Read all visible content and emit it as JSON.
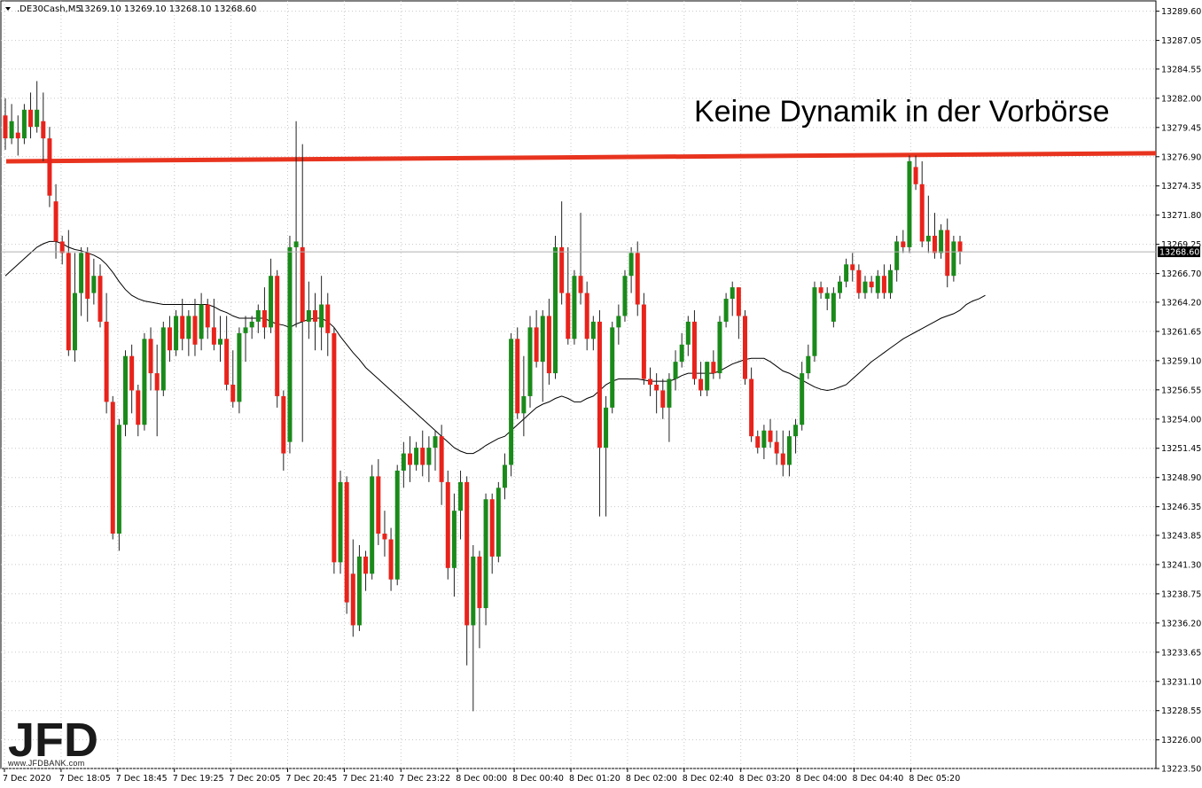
{
  "header": {
    "symbol": ".DE30Cash,M5",
    "ohlc": "13269.10 13269.10 13268.10 13268.60"
  },
  "annotation": "Keine Dynamik in der Vorbörse",
  "logo": {
    "text": "JFD",
    "sub": "www.JFDBANK.com"
  },
  "colors": {
    "bull": "#1a8a1a",
    "bear": "#e8231b",
    "wick": "#222222",
    "ma": "#000000",
    "resistance": "#e8341f",
    "grid": "#c8c8c8",
    "axis": "#000000"
  },
  "chart_data": {
    "type": "candlestick",
    "timeframe": "M5",
    "ylim": [
      13223.5,
      13290.5
    ],
    "y_ticks": [
      "13289.60",
      "13287.05",
      "13284.55",
      "13282.00",
      "13279.45",
      "13276.90",
      "13274.35",
      "13271.80",
      "13269.25",
      "13266.70",
      "13264.20",
      "13261.65",
      "13259.10",
      "13256.55",
      "13254.00",
      "13251.45",
      "13248.90",
      "13246.35",
      "13243.85",
      "13241.30",
      "13238.75",
      "13236.20",
      "13233.65",
      "13231.10",
      "13228.55",
      "13226.00",
      "13223.50"
    ],
    "x_ticks": [
      "7 Dec 2020",
      "7 Dec 18:05",
      "7 Dec 18:45",
      "7 Dec 19:25",
      "7 Dec 20:05",
      "7 Dec 20:45",
      "7 Dec 21:40",
      "7 Dec 23:22",
      "8 Dec 00:00",
      "8 Dec 00:40",
      "8 Dec 01:20",
      "8 Dec 02:00",
      "8 Dec 02:40",
      "8 Dec 03:20",
      "8 Dec 04:00",
      "8 Dec 04:40",
      "8 Dec 05:20"
    ],
    "current_price": "13268.60",
    "resistance_line": {
      "start": 13276.5,
      "end": 13277.2
    },
    "candles": [
      [
        13280.5,
        13282.0,
        13277.5,
        13278.5
      ],
      [
        13278.5,
        13281.5,
        13278.0,
        13280.0
      ],
      [
        13279.0,
        13280.5,
        13277.0,
        13278.5
      ],
      [
        13278.5,
        13281.5,
        13278.0,
        13281.0
      ],
      [
        13281.0,
        13282.5,
        13278.5,
        13279.5
      ],
      [
        13279.5,
        13283.5,
        13279.0,
        13281.0
      ],
      [
        13280.0,
        13282.5,
        13276.5,
        13278.5
      ],
      [
        13278.5,
        13279.5,
        13272.5,
        13273.5
      ],
      [
        13273.0,
        13274.5,
        13268.0,
        13269.5
      ],
      [
        13269.5,
        13270.0,
        13267.5,
        13268.5
      ],
      [
        13268.5,
        13270.5,
        13259.5,
        13260.0
      ],
      [
        13260.0,
        13268.5,
        13259.0,
        13265.0
      ],
      [
        13265.0,
        13269.0,
        13263.0,
        13268.5
      ],
      [
        13268.5,
        13269.0,
        13262.5,
        13264.5
      ],
      [
        13265.0,
        13268.0,
        13264.0,
        13266.5
      ],
      [
        13266.5,
        13267.5,
        13262.0,
        13262.5
      ],
      [
        13262.5,
        13265.0,
        13254.5,
        13255.5
      ],
      [
        13255.5,
        13256.0,
        13243.5,
        13244.0
      ],
      [
        13244.0,
        13254.0,
        13242.5,
        13253.5
      ],
      [
        13253.5,
        13260.0,
        13252.5,
        13259.5
      ],
      [
        13259.5,
        13260.5,
        13254.5,
        13256.5
      ],
      [
        13256.5,
        13257.0,
        13252.5,
        13253.5
      ],
      [
        13253.5,
        13261.5,
        13253.0,
        13261.0
      ],
      [
        13261.0,
        13262.0,
        13256.5,
        13258.0
      ],
      [
        13258.0,
        13260.5,
        13252.5,
        13256.5
      ],
      [
        13256.5,
        13262.5,
        13256.0,
        13262.0
      ],
      [
        13262.0,
        13263.0,
        13259.0,
        13260.0
      ],
      [
        13260.0,
        13263.5,
        13259.5,
        13263.0
      ],
      [
        13263.0,
        13264.5,
        13260.0,
        13261.0
      ],
      [
        13261.0,
        13263.5,
        13259.5,
        13263.0
      ],
      [
        13263.0,
        13264.5,
        13259.5,
        13260.5
      ],
      [
        13261.0,
        13265.0,
        13260.0,
        13264.0
      ],
      [
        13264.0,
        13264.5,
        13261.0,
        13262.0
      ],
      [
        13262.0,
        13264.5,
        13260.0,
        13260.5
      ],
      [
        13260.5,
        13263.0,
        13259.0,
        13261.0
      ],
      [
        13261.0,
        13263.0,
        13256.5,
        13257.0
      ],
      [
        13257.0,
        13260.0,
        13255.0,
        13255.5
      ],
      [
        13255.5,
        13262.0,
        13254.5,
        13261.5
      ],
      [
        13261.5,
        13263.0,
        13259.0,
        13262.0
      ],
      [
        13262.0,
        13263.0,
        13261.0,
        13262.5
      ],
      [
        13262.5,
        13264.0,
        13261.5,
        13263.5
      ],
      [
        13263.5,
        13265.5,
        13261.0,
        13262.0
      ],
      [
        13262.0,
        13268.0,
        13261.5,
        13266.5
      ],
      [
        13266.5,
        13267.0,
        13255.0,
        13256.0
      ],
      [
        13256.0,
        13256.5,
        13249.5,
        13251.0
      ],
      [
        13252.0,
        13270.0,
        13251.0,
        13269.0
      ],
      [
        13269.0,
        13280.0,
        13262.0,
        13269.5
      ],
      [
        13269.0,
        13278.0,
        13252.0,
        13262.5
      ],
      [
        13262.5,
        13266.0,
        13261.0,
        13263.5
      ],
      [
        13263.5,
        13265.0,
        13260.0,
        13262.5
      ],
      [
        13262.0,
        13266.5,
        13260.0,
        13264.0
      ],
      [
        13264.0,
        13265.0,
        13259.5,
        13261.5
      ],
      [
        13261.5,
        13262.0,
        13240.5,
        13241.5
      ],
      [
        13241.5,
        13249.5,
        13240.5,
        13248.5
      ],
      [
        13248.5,
        13249.0,
        13237.0,
        13238.0
      ],
      [
        13240.5,
        13243.5,
        13235.0,
        13236.0
      ],
      [
        13236.0,
        13243.0,
        13235.5,
        13242.0
      ],
      [
        13242.0,
        13242.5,
        13239.0,
        13240.5
      ],
      [
        13240.5,
        13250.0,
        13240.0,
        13249.0
      ],
      [
        13249.0,
        13250.5,
        13243.0,
        13244.0
      ],
      [
        13244.0,
        13246.0,
        13242.0,
        13243.5
      ],
      [
        13243.5,
        13244.5,
        13239.0,
        13240.0
      ],
      [
        13240.0,
        13250.0,
        13239.5,
        13249.5
      ],
      [
        13249.5,
        13252.0,
        13248.0,
        13251.0
      ],
      [
        13251.0,
        13252.5,
        13248.5,
        13250.0
      ],
      [
        13250.0,
        13252.0,
        13249.5,
        13251.5
      ],
      [
        13251.5,
        13253.0,
        13249.0,
        13250.0
      ],
      [
        13250.0,
        13252.5,
        13248.5,
        13251.5
      ],
      [
        13251.5,
        13253.0,
        13249.5,
        13252.5
      ],
      [
        13252.5,
        13253.5,
        13246.5,
        13248.5
      ],
      [
        13248.5,
        13249.5,
        13240.0,
        13241.0
      ],
      [
        13241.0,
        13247.5,
        13238.5,
        13246.0
      ],
      [
        13246.0,
        13249.5,
        13243.5,
        13248.5
      ],
      [
        13248.5,
        13249.0,
        13232.5,
        13236.0
      ],
      [
        13236.0,
        13243.0,
        13228.5,
        13242.0
      ],
      [
        13242.0,
        13242.5,
        13234.0,
        13237.5
      ],
      [
        13237.5,
        13247.5,
        13236.0,
        13247.0
      ],
      [
        13247.0,
        13247.5,
        13240.5,
        13242.0
      ],
      [
        13242.0,
        13248.5,
        13241.5,
        13248.0
      ],
      [
        13248.0,
        13251.0,
        13247.0,
        13250.0
      ],
      [
        13250.0,
        13261.5,
        13249.0,
        13261.0
      ],
      [
        13261.0,
        13262.0,
        13254.0,
        13254.5
      ],
      [
        13254.5,
        13259.5,
        13252.5,
        13256.0
      ],
      [
        13256.0,
        13263.0,
        13255.0,
        13262.0
      ],
      [
        13262.0,
        13263.5,
        13258.5,
        13259.0
      ],
      [
        13259.0,
        13263.5,
        13255.5,
        13263.0
      ],
      [
        13263.0,
        13264.5,
        13257.0,
        13258.0
      ],
      [
        13258.0,
        13270.0,
        13257.5,
        13269.0
      ],
      [
        13269.0,
        13273.0,
        13264.0,
        13265.0
      ],
      [
        13265.0,
        13269.0,
        13260.5,
        13261.0
      ],
      [
        13261.0,
        13267.0,
        13260.5,
        13266.5
      ],
      [
        13266.5,
        13272.0,
        13264.0,
        13265.0
      ],
      [
        13265.0,
        13266.0,
        13260.0,
        13261.0
      ],
      [
        13261.0,
        13263.0,
        13260.0,
        13262.5
      ],
      [
        13262.5,
        13263.5,
        13245.5,
        13251.5
      ],
      [
        13251.5,
        13256.0,
        13245.5,
        13255.0
      ],
      [
        13255.0,
        13262.5,
        13254.5,
        13262.0
      ],
      [
        13262.0,
        13264.0,
        13260.5,
        13263.0
      ],
      [
        13263.0,
        13267.0,
        13262.5,
        13266.5
      ],
      [
        13266.5,
        13269.0,
        13265.0,
        13268.5
      ],
      [
        13268.5,
        13269.5,
        13263.0,
        13264.0
      ],
      [
        13264.0,
        13265.0,
        13257.0,
        13257.5
      ],
      [
        13257.5,
        13258.5,
        13256.0,
        13257.0
      ],
      [
        13257.0,
        13258.0,
        13254.5,
        13256.5
      ],
      [
        13256.5,
        13257.5,
        13254.0,
        13255.0
      ],
      [
        13255.0,
        13258.0,
        13252.0,
        13257.5
      ],
      [
        13257.5,
        13260.0,
        13256.5,
        13259.0
      ],
      [
        13259.0,
        13261.5,
        13258.5,
        13260.5
      ],
      [
        13260.5,
        13263.0,
        13259.5,
        13262.5
      ],
      [
        13262.5,
        13263.5,
        13257.0,
        13257.5
      ],
      [
        13257.5,
        13259.0,
        13256.0,
        13256.5
      ],
      [
        13256.5,
        13259.0,
        13256.0,
        13259.0
      ],
      [
        13259.0,
        13260.0,
        13257.5,
        13258.0
      ],
      [
        13258.0,
        13263.0,
        13257.5,
        13262.5
      ],
      [
        13262.5,
        13265.0,
        13262.0,
        13264.5
      ],
      [
        13264.5,
        13266.0,
        13263.0,
        13265.5
      ],
      [
        13265.5,
        13265.5,
        13261.0,
        13263.0
      ],
      [
        13263.0,
        13263.5,
        13257.0,
        13257.5
      ],
      [
        13257.5,
        13258.5,
        13252.0,
        13252.5
      ],
      [
        13252.5,
        13253.0,
        13251.0,
        13251.5
      ],
      [
        13251.5,
        13253.5,
        13250.5,
        13253.0
      ],
      [
        13253.0,
        13254.0,
        13251.5,
        13252.0
      ],
      [
        13252.0,
        13253.0,
        13250.0,
        13251.0
      ],
      [
        13251.0,
        13253.0,
        13249.0,
        13250.0
      ],
      [
        13250.0,
        13253.0,
        13249.0,
        13252.5
      ],
      [
        13252.5,
        13254.0,
        13251.0,
        13253.5
      ],
      [
        13253.5,
        13259.0,
        13253.0,
        13258.0
      ],
      [
        13258.0,
        13260.5,
        13257.5,
        13259.5
      ],
      [
        13259.5,
        13266.0,
        13259.0,
        13265.5
      ],
      [
        13265.5,
        13266.0,
        13264.5,
        13265.0
      ],
      [
        13264.5,
        13265.5,
        13263.5,
        13265.0
      ],
      [
        13262.5,
        13265.5,
        13262.0,
        13265.0
      ],
      [
        13265.0,
        13266.5,
        13264.5,
        13266.0
      ],
      [
        13266.0,
        13268.0,
        13265.5,
        13267.5
      ],
      [
        13267.5,
        13268.5,
        13266.0,
        13267.0
      ],
      [
        13267.0,
        13267.5,
        13264.5,
        13265.0
      ],
      [
        13265.0,
        13266.5,
        13264.5,
        13266.0
      ],
      [
        13266.0,
        13266.5,
        13265.0,
        13265.5
      ],
      [
        13265.0,
        13267.0,
        13264.5,
        13266.5
      ],
      [
        13266.5,
        13267.5,
        13264.5,
        13265.0
      ],
      [
        13265.0,
        13267.5,
        13264.5,
        13267.0
      ],
      [
        13267.0,
        13270.0,
        13266.0,
        13269.5
      ],
      [
        13269.5,
        13270.5,
        13268.5,
        13269.0
      ],
      [
        13269.0,
        13277.0,
        13268.5,
        13276.5
      ],
      [
        13276.0,
        13277.0,
        13274.0,
        13274.5
      ],
      [
        13274.5,
        13276.5,
        13269.0,
        13269.5
      ],
      [
        13269.5,
        13273.5,
        13268.5,
        13270.0
      ],
      [
        13270.0,
        13272.0,
        13268.0,
        13268.5
      ],
      [
        13268.5,
        13271.0,
        13268.0,
        13270.5
      ],
      [
        13270.5,
        13271.5,
        13265.5,
        13266.5
      ],
      [
        13266.5,
        13270.0,
        13266.0,
        13269.5
      ],
      [
        13269.5,
        13270.0,
        13267.5,
        13268.6
      ]
    ],
    "ma": [
      13266.5,
      13267.0,
      13267.5,
      13268.0,
      13268.5,
      13269.0,
      13269.3,
      13269.5,
      13269.5,
      13269.3,
      13269.0,
      13268.8,
      13268.7,
      13268.5,
      13268.3,
      13268.0,
      13267.5,
      13266.8,
      13266.0,
      13265.3,
      13264.8,
      13264.5,
      13264.3,
      13264.2,
      13264.1,
      13264.0,
      13264.0,
      13264.0,
      13264.0,
      13264.0,
      13264.0,
      13264.0,
      13264.0,
      13263.8,
      13263.5,
      13263.3,
      13263.0,
      13262.8,
      13262.8,
      13262.8,
      13262.8,
      13262.8,
      13262.5,
      13262.3,
      13262.2,
      13262.0,
      13262.3,
      13262.5,
      13262.7,
      13262.8,
      13262.8,
      13262.5,
      13262.0,
      13261.2,
      13260.5,
      13259.8,
      13259.2,
      13258.5,
      13258.0,
      13257.5,
      13257.0,
      13256.5,
      13256.0,
      13255.5,
      13255.0,
      13254.5,
      13254.0,
      13253.5,
      13253.0,
      13252.5,
      13252.0,
      13251.5,
      13251.2,
      13251.0,
      13251.0,
      13251.3,
      13251.7,
      13252.0,
      13252.3,
      13252.5,
      13253.0,
      13253.5,
      13254.0,
      13254.5,
      13255.0,
      13255.3,
      13255.5,
      13255.8,
      13256.0,
      13255.8,
      13255.5,
      13255.5,
      13255.8,
      13256.0,
      13256.5,
      13257.0,
      13257.3,
      13257.5,
      13257.5,
      13257.5,
      13257.5,
      13257.4,
      13257.3,
      13257.3,
      13257.3,
      13257.3,
      13257.5,
      13257.8,
      13258.0,
      13258.0,
      13258.0,
      13258.0,
      13258.0,
      13258.2,
      13258.5,
      13258.8,
      13259.0,
      13259.2,
      13259.3,
      13259.3,
      13259.3,
      13259.0,
      13258.6,
      13258.2,
      13258.0,
      13257.7,
      13257.4,
      13257.1,
      13256.8,
      13256.6,
      13256.5,
      13256.6,
      13256.8,
      13257.0,
      13257.5,
      13258.0,
      13258.5,
      13259.0,
      13259.4,
      13259.8,
      13260.2,
      13260.6,
      13261.0,
      13261.3,
      13261.6,
      13261.9,
      13262.2,
      13262.5,
      13262.8,
      13263.0,
      13263.2,
      13263.5,
      13264.0,
      13264.3,
      13264.5,
      13264.8
    ]
  }
}
